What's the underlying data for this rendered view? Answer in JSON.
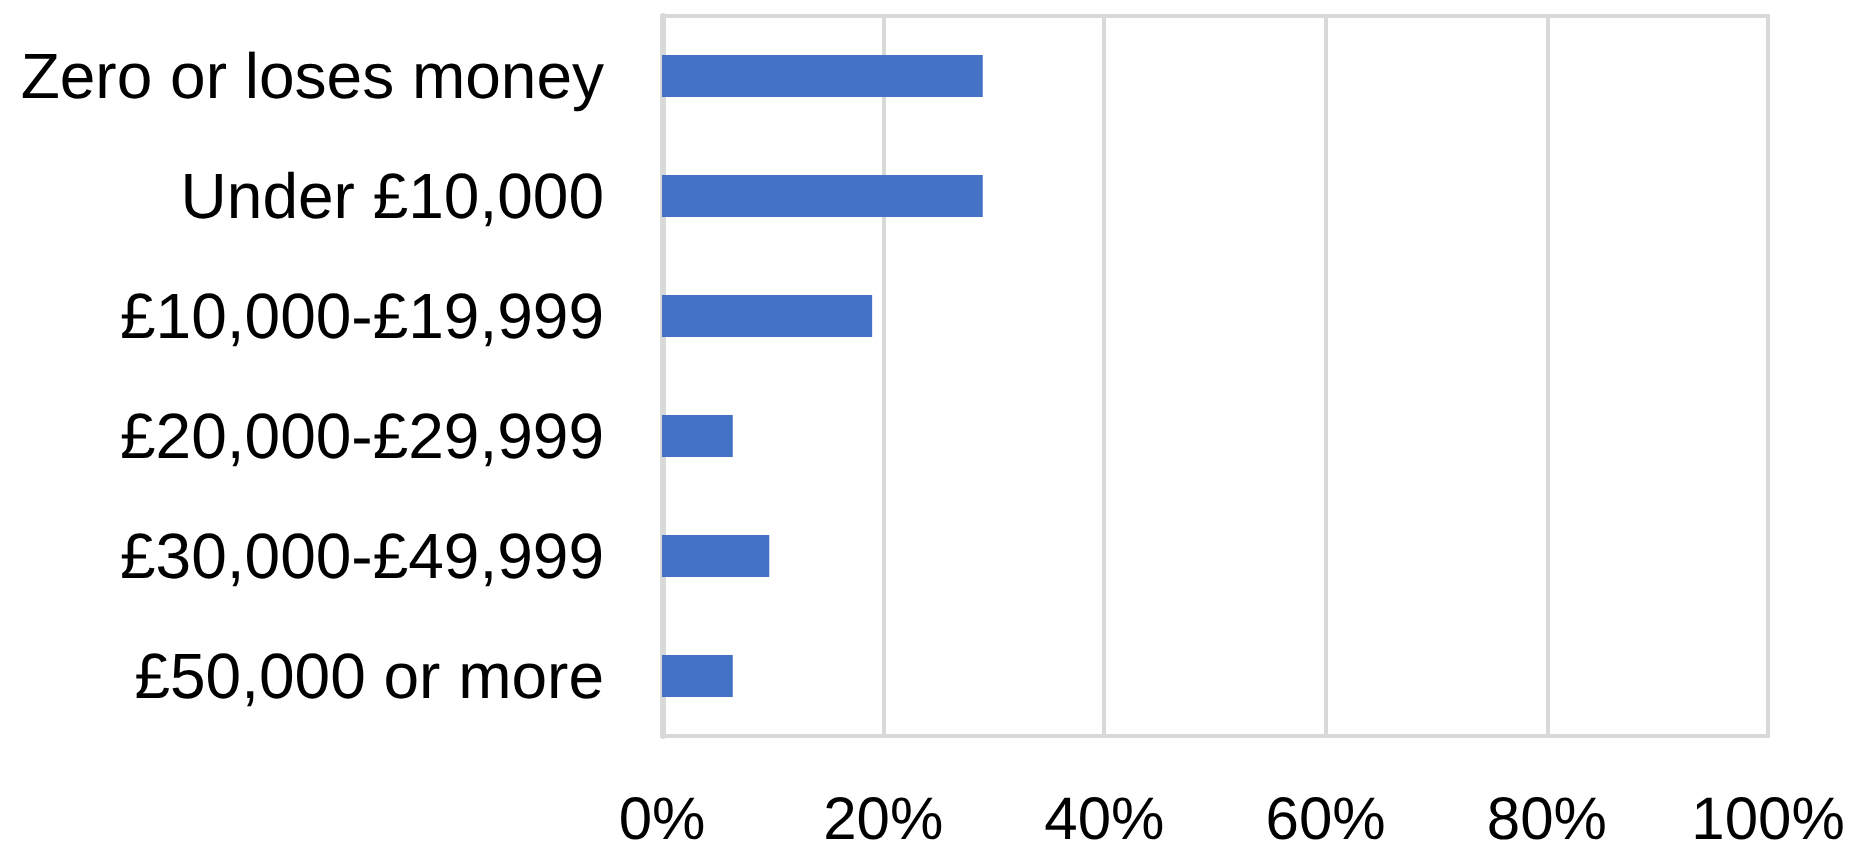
{
  "chart_data": {
    "type": "bar",
    "orientation": "horizontal",
    "categories": [
      "Zero or loses money",
      "Under £10,000",
      "£10,000-£19,999",
      "£20,000-£29,999",
      "£30,000-£49,999",
      "£50,000 or more"
    ],
    "values": [
      29,
      29,
      19,
      6.4,
      9.7,
      6.4
    ],
    "color": "#4472c4",
    "xlim": [
      0,
      100
    ],
    "xticks": [
      {
        "value": 0,
        "label": "0%"
      },
      {
        "value": 20,
        "label": "20%"
      },
      {
        "value": 40,
        "label": "40%"
      },
      {
        "value": 60,
        "label": "60%"
      },
      {
        "value": 80,
        "label": "80%"
      },
      {
        "value": 100,
        "label": "100%"
      }
    ],
    "grid": "x"
  }
}
